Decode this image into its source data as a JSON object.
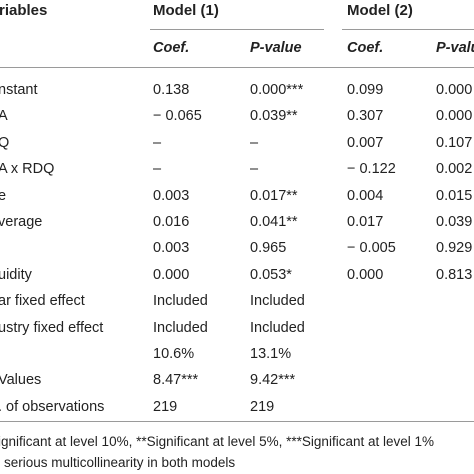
{
  "header": {
    "variables_label": "riables",
    "model1_label": "Model (1)",
    "model2_label": "Model (2)",
    "coef_label": "Coef.",
    "pvalue_label": "P-value",
    "pvalue_label_cut": "P-value"
  },
  "rows": [
    {
      "label": "nstant",
      "m1_coef": "0.138",
      "m1_p": "0.000***",
      "m2_coef": "0.099",
      "m2_p": "0.000"
    },
    {
      "label": "A",
      "m1_coef": "− 0.065",
      "m1_p": "0.039**",
      "m2_coef": "0.307",
      "m2_p": "0.000"
    },
    {
      "label": "Q",
      "m1_coef": "–",
      "m1_p": "–",
      "m2_coef": "0.007",
      "m2_p": "0.107"
    },
    {
      "label": "A x RDQ",
      "m1_coef": "–",
      "m1_p": "–",
      "m2_coef": "− 0.122",
      "m2_p": "0.002"
    },
    {
      "label": "e",
      "m1_coef": "0.003",
      "m1_p": "0.017**",
      "m2_coef": "0.004",
      "m2_p": "0.015"
    },
    {
      "label": "verage",
      "m1_coef": "0.016",
      "m1_p": "0.041**",
      "m2_coef": "0.017",
      "m2_p": "0.039"
    },
    {
      "label": "",
      "m1_coef": "0.003",
      "m1_p": "0.965",
      "m2_coef": "− 0.005",
      "m2_p": "0.929"
    },
    {
      "label": "uidity",
      "m1_coef": "0.000",
      "m1_p": "0.053*",
      "m2_coef": "0.000",
      "m2_p": "0.813"
    },
    {
      "label": "ar fixed effect",
      "m1_coef": "Included",
      "m1_p": "Included",
      "m2_coef": "",
      "m2_p": ""
    },
    {
      "label": "ustry fixed effect",
      "m1_coef": "Included",
      "m1_p": "Included",
      "m2_coef": "",
      "m2_p": ""
    },
    {
      "label": "",
      "m1_coef": "10.6%",
      "m1_p": "13.1%",
      "m2_coef": "",
      "m2_p": ""
    },
    {
      "label": "Values",
      "m1_coef": "8.47***",
      "m1_p": "9.42***",
      "m2_coef": "",
      "m2_p": ""
    },
    {
      "label": ". of observations",
      "m1_coef": "219",
      "m1_p": "219",
      "m2_coef": "",
      "m2_p": ""
    }
  ],
  "footnotes": [
    "ignificant at level 10%, **Significant at level 5%, ***Significant at level 1%",
    "serious multicollinearity in both models"
  ],
  "colors": {
    "text": "#222222",
    "rule": "#9a9a9a"
  }
}
